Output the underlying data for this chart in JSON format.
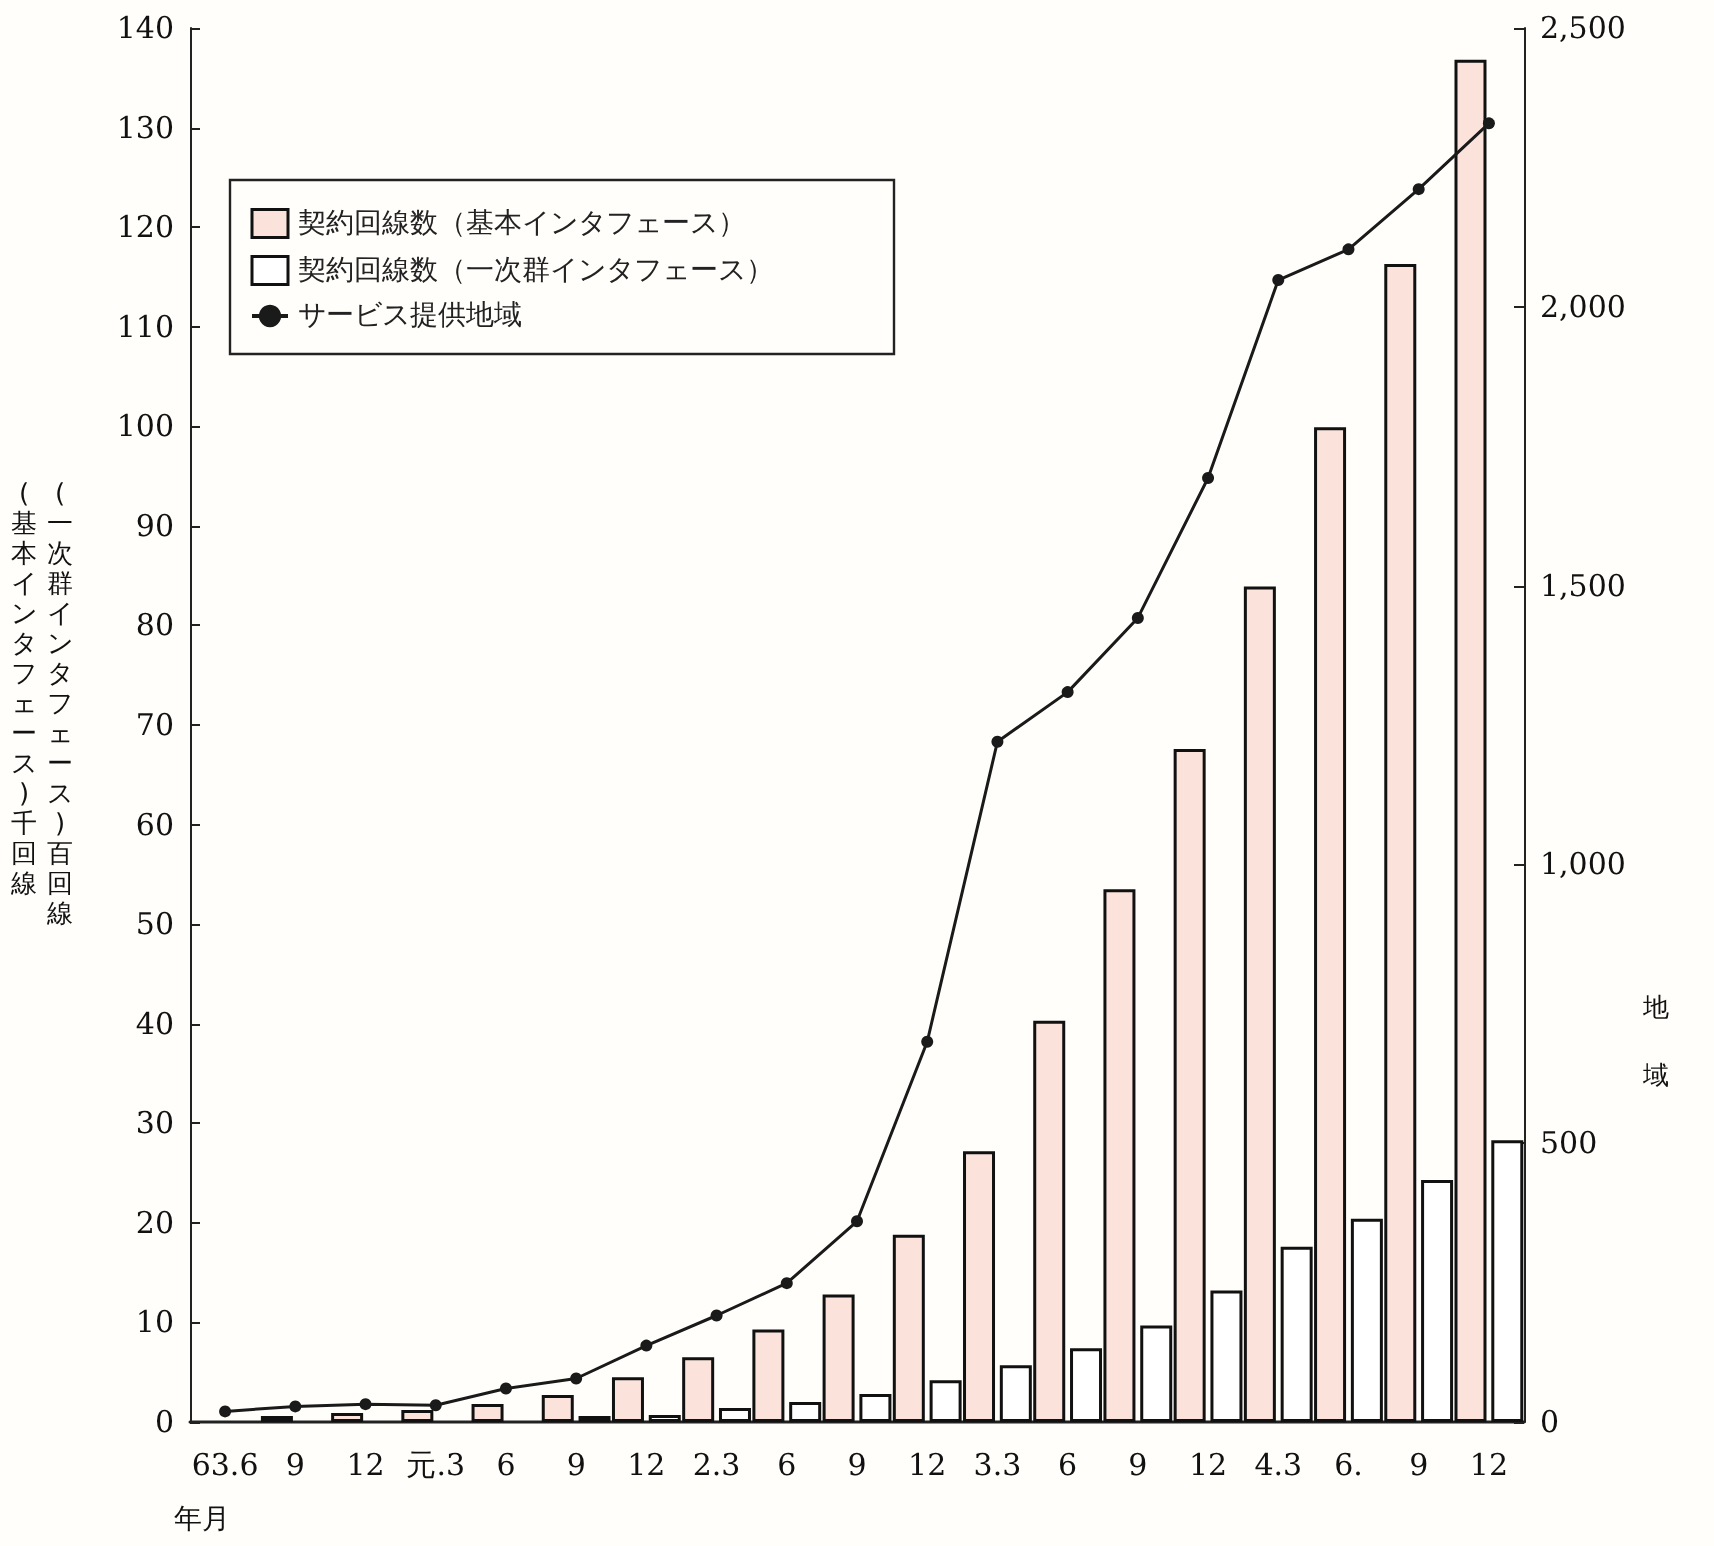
{
  "chart_data": {
    "type": "bar",
    "categories": [
      "63.6",
      "9",
      "12",
      "元.3",
      "6",
      "9",
      "12",
      "2.3",
      "6",
      "9",
      "12",
      "3.3",
      "6",
      "9",
      "12",
      "4.3",
      "6.",
      "9",
      "12"
    ],
    "series": [
      {
        "name": "契約回線数（基本インタフェース）",
        "color": "#fbe3dc",
        "values": [
          null,
          0.6,
          0.9,
          1.2,
          1.8,
          2.7,
          4.5,
          6.5,
          9.3,
          12.8,
          18.8,
          27.2,
          40.3,
          53.5,
          67.6,
          83.9,
          99.9,
          116.3,
          136.8
        ]
      },
      {
        "name": "契約回線数（一次群インタフェース）",
        "color": "#ffffff",
        "values": [
          null,
          null,
          null,
          null,
          null,
          0.6,
          0.7,
          1.4,
          2.0,
          2.8,
          4.2,
          5.7,
          7.4,
          9.7,
          13.2,
          17.6,
          20.4,
          24.3,
          28.3
        ]
      },
      {
        "name": "サービス提供地域",
        "type": "line",
        "axis": "y2",
        "color": "#1a1a1a",
        "marker": "circle",
        "values": [
          19,
          28,
          32,
          30,
          60,
          78,
          137,
          191,
          249,
          360,
          682,
          1220,
          1309,
          1442,
          1693,
          2048,
          2103,
          2211,
          2329
        ]
      }
    ],
    "xlabel": "年月",
    "ylabel": "(一次群インタフェース)百回線\n(基本インタフェース)千回線",
    "y2label": "地域",
    "ylim": [
      0,
      140
    ],
    "yticks": [
      0,
      10,
      20,
      30,
      40,
      50,
      60,
      70,
      80,
      90,
      100,
      110,
      120,
      130,
      140
    ],
    "y2lim": [
      0,
      2500
    ],
    "y2ticks": [
      {
        "value": 0,
        "label": "0"
      },
      {
        "value": 500,
        "label": "500"
      },
      {
        "value": 1000,
        "label": "1,000"
      },
      {
        "value": 1500,
        "label": "1,500"
      },
      {
        "value": 2000,
        "label": "2,000"
      },
      {
        "value": 2500,
        "label": "2,500"
      }
    ],
    "grid": false,
    "legend": "top left"
  }
}
